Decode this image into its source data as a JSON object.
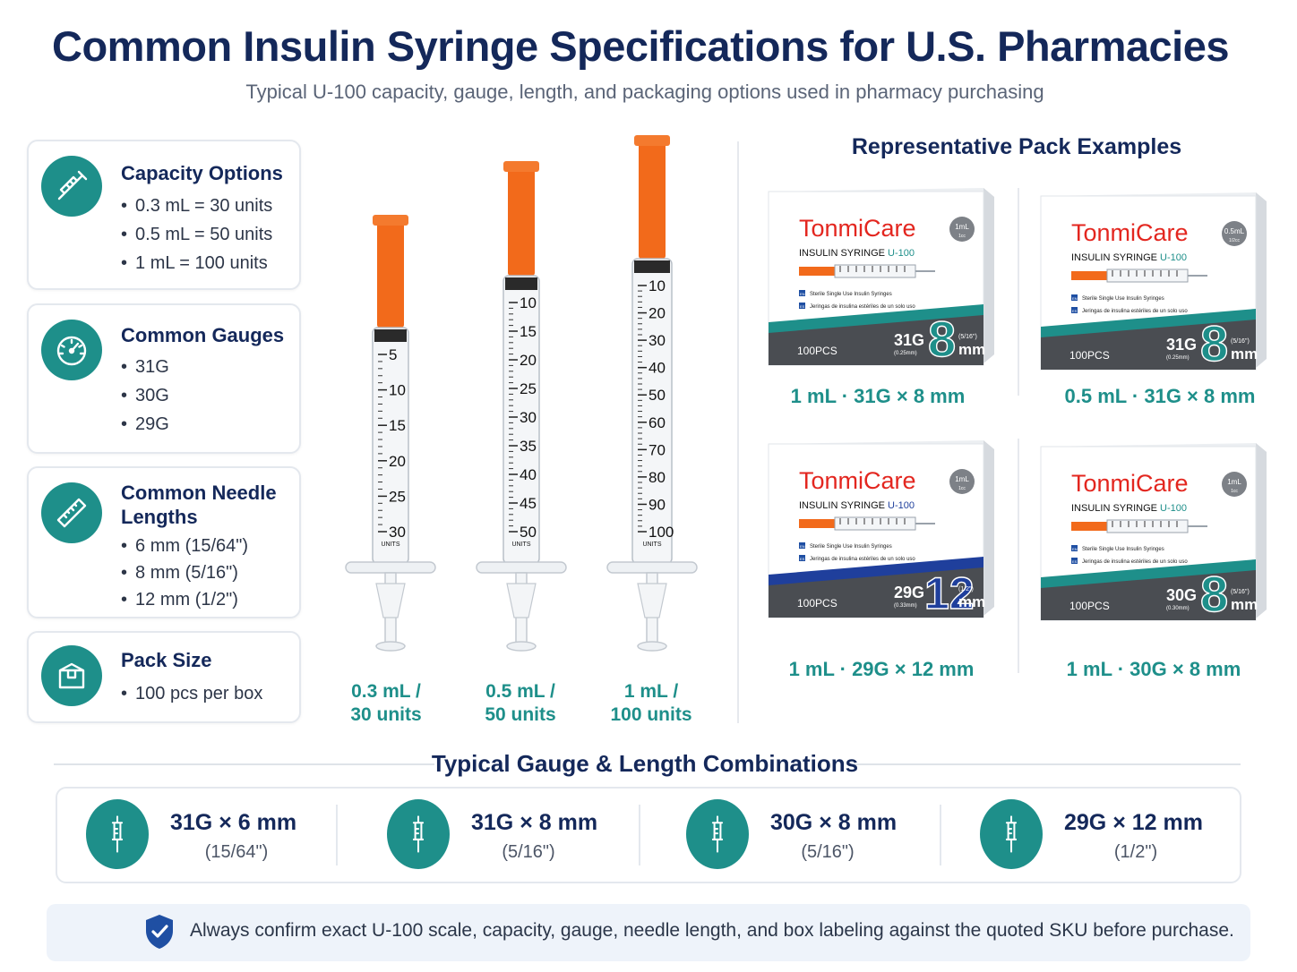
{
  "header": {
    "title": "Common Insulin Syringe Specifications for U.S. Pharmacies",
    "subtitle": "Typical U-100 capacity, gauge, length, and packaging options used in pharmacy purchasing"
  },
  "cards": [
    {
      "title": "Capacity Options",
      "icon": "syringe-icon",
      "items": [
        "0.3 mL = 30 units",
        "0.5 mL = 50 units",
        "1 mL = 100 units"
      ]
    },
    {
      "title": "Common Gauges",
      "icon": "gauge-icon",
      "items": [
        "31G",
        "30G",
        "29G"
      ]
    },
    {
      "title_line1": "Common Needle",
      "title_line2": "Lengths",
      "icon": "ruler-icon",
      "items": [
        "6 mm (15/64\")",
        "8 mm (5/16\")",
        "12 mm (1/2\")"
      ]
    },
    {
      "title": "Pack Size",
      "icon": "box-icon",
      "items": [
        "100 pcs per box"
      ]
    }
  ],
  "syringes": [
    {
      "label_line1": "0.3 mL /",
      "label_line2": "30 units",
      "scale": [
        "5",
        "10",
        "15",
        "20",
        "25",
        "30"
      ],
      "units": "UNITS"
    },
    {
      "label_line1": "0.5 mL /",
      "label_line2": "50 units",
      "scale": [
        "10",
        "15",
        "20",
        "25",
        "30",
        "35",
        "40",
        "45",
        "50"
      ],
      "units": "UNITS"
    },
    {
      "label_line1": "1 mL /",
      "label_line2": "100 units",
      "scale": [
        "10",
        "20",
        "30",
        "40",
        "50",
        "60",
        "70",
        "80",
        "90",
        "100"
      ],
      "units": "UNITS"
    }
  ],
  "packs": {
    "title": "Representative Pack Examples",
    "brand": "TonmiCare",
    "product": "INSULIN SYRINGE",
    "u100": "U-100",
    "lang_en_tag": "EN",
    "lang_es_tag": "ES",
    "line_en": "Sterile Single Use Insulin Syringes",
    "line_es": "Jeringas de insulina estériles de un solo uso",
    "count": "100PCS",
    "mm": "mm",
    "items": [
      {
        "label": "1 mL · 31G × 8 mm",
        "vol": "1mL",
        "vol_sub": "1cc",
        "gauge": "31G",
        "gauge_sub": "(0.25mm)",
        "len": "8",
        "len_sub": "(5/16\")",
        "accent": "#1e8f8a"
      },
      {
        "label": "0.5 mL · 31G × 8 mm",
        "vol": "0.5mL",
        "vol_sub": "1/2cc",
        "gauge": "31G",
        "gauge_sub": "(0.25mm)",
        "len": "8",
        "len_sub": "(5/16\")",
        "accent": "#1e8f8a"
      },
      {
        "label": "1 mL · 29G × 12 mm",
        "vol": "1mL",
        "vol_sub": "1cc",
        "gauge": "29G",
        "gauge_sub": "(0.33mm)",
        "len": "12",
        "len_sub": "(1/2\")",
        "accent": "#1f3f9c"
      },
      {
        "label": "1 mL · 30G × 8 mm",
        "vol": "1mL",
        "vol_sub": "1cc",
        "gauge": "30G",
        "gauge_sub": "(0.30mm)",
        "len": "8",
        "len_sub": "(5/16\")",
        "accent": "#1e8f8a"
      }
    ]
  },
  "combos": {
    "title": "Typical Gauge & Length Combinations",
    "items": [
      {
        "main": "31G × 6 mm",
        "sub": "(15/64\")"
      },
      {
        "main": "31G × 8 mm",
        "sub": "(5/16\")"
      },
      {
        "main": "30G × 8 mm",
        "sub": "(5/16\")"
      },
      {
        "main": "29G × 12 mm",
        "sub": "(1/2\")"
      }
    ]
  },
  "notice": {
    "text": "Always confirm exact U-100 scale, capacity, gauge, needle length, and box labeling against the quoted SKU before purchase."
  },
  "colors": {
    "teal": "#1e8f8a",
    "navy": "#14285a",
    "orange": "#f26a1b",
    "dark_band": "#4a4d52",
    "blue_band": "#1f3f9c"
  }
}
